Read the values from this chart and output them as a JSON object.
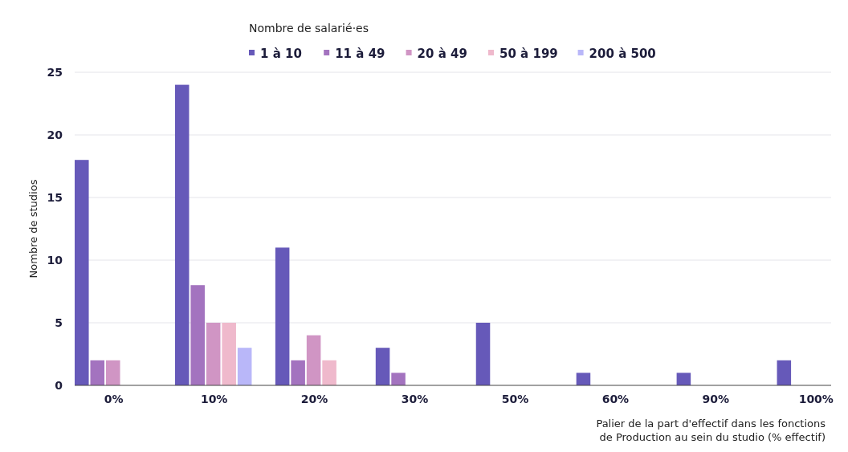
{
  "chart_data": {
    "type": "bar",
    "legend_title": "Nombre de salarié·es",
    "ylabel": "Nombre de studios",
    "xlabel": "Palier de la part d'effectif dans les fonctions de Production au sein du studio (% effectif)",
    "categories": [
      "0%",
      "10%",
      "20%",
      "30%",
      "50%",
      "60%",
      "90%",
      "100%"
    ],
    "series": [
      {
        "name": "1 à 10",
        "color": "#6659b9",
        "values": [
          18,
          24,
          11,
          3,
          5,
          1,
          1,
          2
        ]
      },
      {
        "name": "11 à 49",
        "color": "#a373bf",
        "values": [
          2,
          8,
          2,
          1,
          null,
          null,
          null,
          null
        ]
      },
      {
        "name": "20 à 49",
        "color": "#d095c4",
        "values": [
          2,
          5,
          4,
          null,
          null,
          null,
          null,
          null
        ]
      },
      {
        "name": "50 à 199",
        "color": "#efb9cc",
        "values": [
          null,
          5,
          2,
          null,
          null,
          null,
          null,
          null
        ]
      },
      {
        "name": "200 à 500",
        "color": "#b9b7f9",
        "values": [
          null,
          3,
          null,
          null,
          null,
          null,
          null,
          null
        ]
      }
    ],
    "ylim": [
      0,
      25
    ],
    "yticks": [
      0,
      5,
      10,
      15,
      20,
      25
    ],
    "grid": "y",
    "legend": "top"
  }
}
